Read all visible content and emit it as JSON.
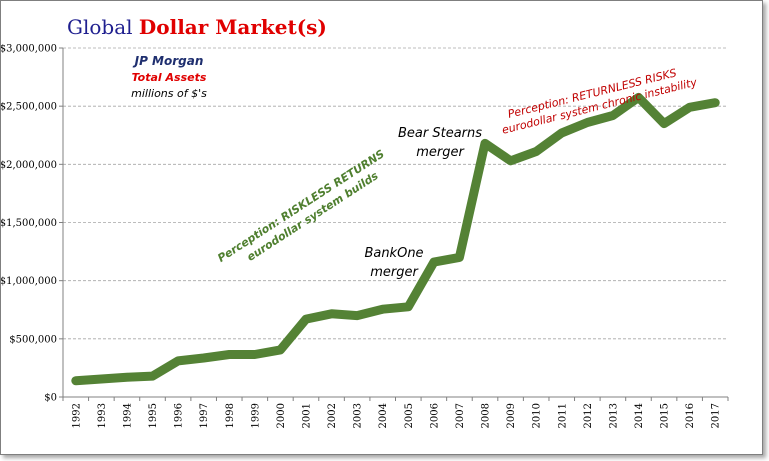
{
  "chart_data": {
    "type": "line",
    "title_part1": "Global ",
    "title_part2": "Dollar Market(s)",
    "legend": {
      "company": "JP Morgan",
      "metric": "Total Assets",
      "unit": "millions of $'s"
    },
    "x": [
      "1992",
      "1993",
      "1994",
      "1995",
      "1996",
      "1997",
      "1998",
      "1999",
      "2000",
      "2001",
      "2002",
      "2003",
      "2004",
      "2005",
      "2006",
      "2007",
      "2008",
      "2009",
      "2010",
      "2011",
      "2012",
      "2013",
      "2014",
      "2015",
      "2016",
      "2017"
    ],
    "series": [
      {
        "values": [
          140000,
          155000,
          170000,
          180000,
          310000,
          335000,
          365000,
          365000,
          405000,
          670000,
          715000,
          700000,
          755000,
          775000,
          1160000,
          1200000,
          2180000,
          2030000,
          2110000,
          2270000,
          2360000,
          2420000,
          2575000,
          2350000,
          2490000,
          2530000
        ],
        "color": "#548235"
      }
    ],
    "ylim": [
      0,
      3000000
    ],
    "yticks": [
      {
        "v": 0,
        "label": "$0"
      },
      {
        "v": 500000,
        "label": "$500,000"
      },
      {
        "v": 1000000,
        "label": "$1,000,000"
      },
      {
        "v": 1500000,
        "label": "$1,500,000"
      },
      {
        "v": 2000000,
        "label": "$2,000,000"
      },
      {
        "v": 2500000,
        "label": "$2,500,000"
      },
      {
        "v": 3000000,
        "label": "$3,000,000"
      }
    ],
    "grid": true,
    "annotations": {
      "riskless_line1": "Perception: RISKLESS RETURNS",
      "riskless_line2": "eurodollar system builds",
      "returnless_line1": "Perception: RETURNLESS RISKS",
      "returnless_line2": "eurodollar system chronic instability",
      "bear_line1": "Bear Stearns",
      "bear_line2": "merger",
      "bankone_line1": "BankOne",
      "bankone_line2": "merger"
    }
  }
}
